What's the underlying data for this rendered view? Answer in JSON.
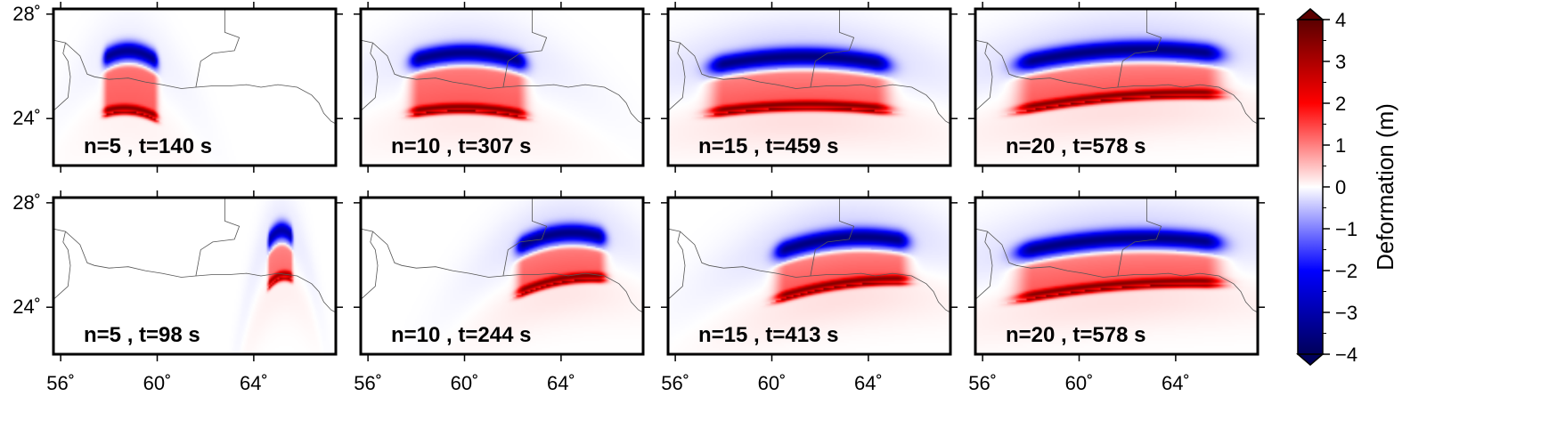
{
  "chart_data": {
    "type": "heatmap",
    "layout": {
      "rows": 2,
      "cols": 4
    },
    "lon_range": [
      55.7,
      67.4
    ],
    "lat_range": [
      22.2,
      28.2
    ],
    "lon_ticks": [
      56,
      60,
      64
    ],
    "lon_tick_labels": [
      "56˚",
      "60˚",
      "64˚"
    ],
    "lat_ticks": [
      24,
      28
    ],
    "lat_tick_labels": [
      "24˚",
      "28˚"
    ],
    "panels": [
      {
        "label": "n=5 , t=140 s",
        "blob": {
          "lon": [
            57.8,
            60.0
          ],
          "lat_blue": 26.3,
          "lat_red": 24.3,
          "tilt": -0.2,
          "amp": 1.0,
          "lobe": 0.4
        }
      },
      {
        "label": "n=10 , t=307 s",
        "blob": {
          "lon": [
            57.8,
            62.5
          ],
          "lat_blue": 26.2,
          "lat_red": 24.3,
          "tilt": -0.1,
          "amp": 1.0,
          "lobe": 0.7
        }
      },
      {
        "label": "n=15 , t=459 s",
        "blob": {
          "lon": [
            57.5,
            64.8
          ],
          "lat_blue": 26.0,
          "lat_red": 24.3,
          "tilt": 0.1,
          "amp": 1.0,
          "lobe": 1.0
        }
      },
      {
        "label": "n=20 , t=578 s",
        "blob": {
          "lon": [
            57.5,
            65.8
          ],
          "lat_blue": 26.1,
          "lat_red": 24.4,
          "tilt": 0.6,
          "amp": 1.0,
          "lobe": 1.0
        }
      },
      {
        "label": "n=5 , t=98 s",
        "blob": {
          "lon": [
            64.6,
            65.6
          ],
          "lat_blue": 26.5,
          "lat_red": 24.9,
          "tilt": 0.3,
          "amp": 0.9,
          "lobe": 0.5
        }
      },
      {
        "label": "n=10 , t=244 s",
        "blob": {
          "lon": [
            62.2,
            65.8
          ],
          "lat_blue": 26.3,
          "lat_red": 24.6,
          "tilt": 0.6,
          "amp": 1.0,
          "lobe": 0.8
        }
      },
      {
        "label": "n=15 , t=413 s",
        "blob": {
          "lon": [
            60.2,
            65.6
          ],
          "lat_blue": 26.1,
          "lat_red": 24.4,
          "tilt": 0.7,
          "amp": 1.0,
          "lobe": 1.0
        }
      },
      {
        "label": "n=20 , t=578 s",
        "blob": {
          "lon": [
            57.5,
            65.8
          ],
          "lat_blue": 26.1,
          "lat_red": 24.4,
          "tilt": 0.6,
          "amp": 1.0,
          "lobe": 1.0
        }
      }
    ],
    "colorbar": {
      "title": "Deformation (m)",
      "range": [
        -4,
        4
      ],
      "ticks": [
        4,
        3,
        2,
        1,
        0,
        -1,
        -2,
        -3,
        -4
      ],
      "tick_labels": [
        "4",
        "3",
        "2",
        "1",
        "0",
        "−1",
        "−2",
        "−3",
        "−4"
      ],
      "colors": [
        "#00005a",
        "#0000ff",
        "#ffffff",
        "#ff0000",
        "#5a0000"
      ]
    }
  }
}
